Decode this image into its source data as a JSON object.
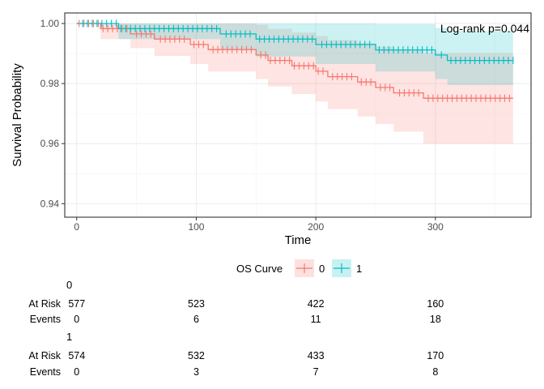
{
  "chart_data": {
    "type": "line",
    "subtype": "kaplan-meier survival curve",
    "xlabel": "Time",
    "ylabel": "Survival Probability",
    "xlim": [
      -10,
      380
    ],
    "ylim": [
      0.9355,
      1.0035
    ],
    "xticks": [
      0,
      100,
      200,
      300
    ],
    "yticks": [
      0.94,
      0.96,
      0.98,
      1.0
    ],
    "ytick_labels": [
      "0.94",
      "0.96",
      "0.98",
      "1.00"
    ],
    "grid": true,
    "annotation": "Log-rank p=0.044",
    "legend": {
      "title": "OS Curve",
      "position": "bottom"
    },
    "series": [
      {
        "name": "0",
        "color": "#F8766D",
        "fill": "#F8766D",
        "steps": [
          [
            0,
            1.0
          ],
          [
            20,
            0.9983
          ],
          [
            45,
            0.9965
          ],
          [
            65,
            0.9948
          ],
          [
            95,
            0.993
          ],
          [
            110,
            0.9913
          ],
          [
            150,
            0.9895
          ],
          [
            160,
            0.9877
          ],
          [
            180,
            0.9859
          ],
          [
            200,
            0.9841
          ],
          [
            210,
            0.9823
          ],
          [
            235,
            0.9805
          ],
          [
            250,
            0.9787
          ],
          [
            265,
            0.9769
          ],
          [
            290,
            0.9751
          ]
        ],
        "upper": [
          [
            0,
            1.0
          ],
          [
            20,
            1.0
          ],
          [
            45,
            1.0
          ],
          [
            65,
            1.0
          ],
          [
            95,
            1.0
          ],
          [
            110,
            1.0
          ],
          [
            150,
            0.9995
          ],
          [
            160,
            0.9982
          ],
          [
            180,
            0.997
          ],
          [
            200,
            0.9958
          ],
          [
            210,
            0.9945
          ],
          [
            235,
            0.9934
          ],
          [
            250,
            0.9923
          ],
          [
            265,
            0.9912
          ],
          [
            290,
            0.9902
          ]
        ],
        "lower": [
          [
            0,
            1.0
          ],
          [
            20,
            0.9948
          ],
          [
            45,
            0.9918
          ],
          [
            65,
            0.9892
          ],
          [
            95,
            0.9865
          ],
          [
            110,
            0.984
          ],
          [
            150,
            0.9815
          ],
          [
            160,
            0.979
          ],
          [
            180,
            0.9765
          ],
          [
            200,
            0.974
          ],
          [
            210,
            0.9715
          ],
          [
            235,
            0.969
          ],
          [
            250,
            0.9665
          ],
          [
            265,
            0.964
          ],
          [
            290,
            0.96
          ]
        ],
        "end_time": 365
      },
      {
        "name": "1",
        "color": "#00BFC4",
        "fill": "#00BFC4",
        "steps": [
          [
            0,
            1.0
          ],
          [
            35,
            0.9983
          ],
          [
            120,
            0.9965
          ],
          [
            150,
            0.9948
          ],
          [
            200,
            0.993
          ],
          [
            250,
            0.9912
          ],
          [
            300,
            0.9895
          ],
          [
            310,
            0.9877
          ]
        ],
        "upper": [
          [
            0,
            1.0
          ],
          [
            35,
            1.0
          ],
          [
            120,
            1.0
          ],
          [
            150,
            1.0
          ],
          [
            200,
            1.0
          ],
          [
            250,
            0.9998
          ],
          [
            300,
            0.9985
          ],
          [
            310,
            0.9975
          ]
        ],
        "lower": [
          [
            0,
            1.0
          ],
          [
            35,
            0.9948
          ],
          [
            120,
            0.9915
          ],
          [
            150,
            0.989
          ],
          [
            200,
            0.9865
          ],
          [
            250,
            0.984
          ],
          [
            300,
            0.9815
          ],
          [
            310,
            0.9795
          ]
        ],
        "end_time": 365
      }
    ],
    "risk_table": {
      "row_labels": [
        "At Risk",
        "Events"
      ],
      "times": [
        0,
        100,
        200,
        300
      ],
      "groups": [
        {
          "name": "0",
          "at_risk": [
            577,
            523,
            422,
            160
          ],
          "events": [
            0,
            6,
            11,
            18
          ]
        },
        {
          "name": "1",
          "at_risk": [
            574,
            532,
            433,
            170
          ],
          "events": [
            0,
            3,
            7,
            8
          ]
        }
      ]
    }
  }
}
